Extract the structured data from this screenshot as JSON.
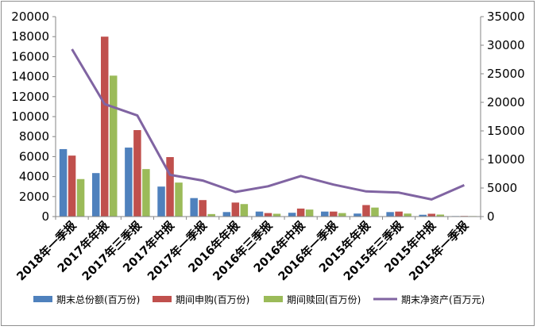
{
  "chart_data": {
    "type": "bar",
    "categories": [
      "2018年一季报",
      "2017年年报",
      "2017年三季报",
      "2017年中报",
      "2017年一季报",
      "2016年年报",
      "2016年三季报",
      "2016年中报",
      "2016年一季报",
      "2015年年报",
      "2015年三季报",
      "2015年中报",
      "2015年一季报"
    ],
    "series": [
      {
        "name": "期末总份额(百万份)",
        "type": "bar",
        "axis": "left",
        "color": "#4f81bd",
        "values": [
          6750,
          4350,
          6900,
          3000,
          1850,
          450,
          500,
          380,
          500,
          300,
          450,
          180,
          50
        ]
      },
      {
        "name": "期间申购(百万份)",
        "type": "bar",
        "axis": "left",
        "color": "#c0504d",
        "values": [
          6100,
          18000,
          8650,
          5950,
          1650,
          1400,
          350,
          800,
          500,
          1150,
          500,
          280,
          60
        ]
      },
      {
        "name": "期间赎回(百万份)",
        "type": "bar",
        "axis": "left",
        "color": "#9bbb59",
        "values": [
          3750,
          14100,
          4750,
          3400,
          250,
          1250,
          280,
          700,
          350,
          900,
          300,
          200,
          50
        ]
      },
      {
        "name": "期末净资产(百万元)",
        "type": "line",
        "axis": "right",
        "color": "#8064a2",
        "values": [
          29300,
          19700,
          17700,
          7300,
          6300,
          4300,
          5300,
          7100,
          5600,
          4400,
          4200,
          3000,
          5500
        ]
      }
    ],
    "left_axis": {
      "min": 0,
      "max": 20000,
      "ticks": [
        "0",
        "2000",
        "4000",
        "6000",
        "8000",
        "10000",
        "12000",
        "14000",
        "16000",
        "18000",
        "20000"
      ]
    },
    "right_axis": {
      "min": 0,
      "max": 35000,
      "ticks": [
        "0",
        "5000",
        "10000",
        "15000",
        "20000",
        "25000",
        "30000",
        "35000"
      ]
    },
    "grid": false,
    "legend_position": "bottom"
  }
}
